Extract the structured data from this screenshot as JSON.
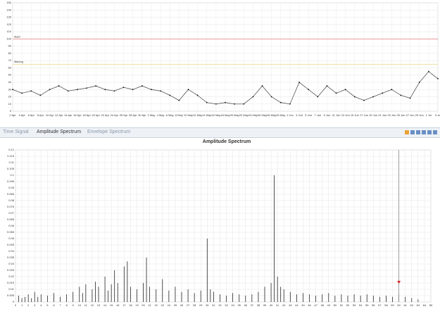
{
  "trend": {
    "type": "line",
    "color": "#555555",
    "categories": [
      "2 Apr",
      "4 Apr",
      "6 Apr",
      "8 Apr",
      "10 Apr",
      "12 Apr",
      "14 Apr",
      "16 Apr",
      "18 Apr",
      "20 Apr",
      "22 Apr",
      "24 Apr",
      "26 Apr",
      "28 Apr",
      "30 Apr",
      "2 May",
      "4 May",
      "6 May",
      "8 May",
      "10 May",
      "12 May",
      "14 May",
      "16 May",
      "18 May",
      "20 May",
      "22 May",
      "24 May",
      "26 May",
      "28 May",
      "30 May",
      "1 Jun",
      "3 Jun",
      "5 Jun",
      "7 Jun",
      "9 Jun",
      "11 Jun",
      "13 Jun",
      "15 Jun",
      "17 Jun",
      "19 Jun",
      "21 Jun",
      "23 Jun",
      "25 Jun",
      "27 Jun",
      "29 Jun",
      "1 Jul",
      "3 Jul"
    ],
    "values": [
      30,
      25,
      28,
      22,
      30,
      35,
      28,
      30,
      32,
      35,
      30,
      28,
      33,
      30,
      35,
      30,
      28,
      22,
      15,
      30,
      22,
      12,
      10,
      12,
      10,
      10,
      20,
      35,
      20,
      12,
      10,
      40,
      30,
      20,
      35,
      25,
      30,
      20,
      15,
      20,
      25,
      30,
      22,
      18,
      40,
      55,
      45
    ],
    "ylim": [
      0,
      150
    ],
    "yticks": [
      0,
      10,
      20,
      30,
      40,
      50,
      60,
      70,
      80,
      90,
      100,
      110,
      120,
      130,
      140,
      150
    ],
    "thresholds": [
      {
        "label": "Alarm",
        "value": 100,
        "color": "#e88a8a"
      },
      {
        "label": "Warning",
        "value": 65,
        "color": "#e8d27a"
      }
    ]
  },
  "tabs": [
    "Time Signal",
    "Amplitude Spectrum",
    "Envelope Spectrum"
  ],
  "spectrum": {
    "type": "stem",
    "title": "Amplitude Spectrum",
    "color": "#222222",
    "x": [
      0.5,
      1,
      1.5,
      2,
      2.5,
      3,
      3.5,
      4,
      5,
      6,
      7,
      8,
      9,
      10,
      10.5,
      11,
      12,
      12.5,
      13,
      14,
      14.5,
      15,
      15.5,
      16,
      17,
      17.5,
      18,
      19,
      20,
      20.5,
      21,
      22,
      23,
      24,
      25,
      26,
      27,
      28,
      29,
      30,
      30.5,
      31,
      32,
      33,
      34,
      35,
      36,
      37,
      38,
      39,
      40,
      40.5,
      41,
      41.5,
      42,
      43,
      44,
      45,
      46,
      47,
      48,
      49,
      50,
      51,
      52,
      53,
      54,
      55,
      56,
      57,
      58,
      59,
      60,
      61,
      62,
      63
    ],
    "values": [
      0.005,
      0.003,
      0.004,
      0.006,
      0.003,
      0.008,
      0.004,
      0.006,
      0.005,
      0.007,
      0.004,
      0.006,
      0.008,
      0.012,
      0.007,
      0.014,
      0.01,
      0.016,
      0.012,
      0.02,
      0.009,
      0.014,
      0.025,
      0.015,
      0.028,
      0.032,
      0.012,
      0.01,
      0.015,
      0.035,
      0.012,
      0.01,
      0.018,
      0.009,
      0.012,
      0.008,
      0.01,
      0.007,
      0.009,
      0.05,
      0.01,
      0.008,
      0.006,
      0.005,
      0.007,
      0.006,
      0.005,
      0.006,
      0.008,
      0.012,
      0.015,
      0.1,
      0.02,
      0.012,
      0.01,
      0.008,
      0.006,
      0.007,
      0.006,
      0.005,
      0.006,
      0.007,
      0.005,
      0.006,
      0.005,
      0.006,
      0.005,
      0.006,
      0.005,
      0.004,
      0.005,
      0.004,
      0.006,
      0.004,
      0.003,
      0.002
    ],
    "cursor_x": 60,
    "cursor_color": "#d62020",
    "xlim": [
      0,
      65
    ],
    "xticks": [
      0,
      1,
      2,
      3,
      4,
      5,
      6,
      7,
      8,
      9,
      10,
      11,
      12,
      13,
      14,
      15,
      16,
      17,
      18,
      19,
      20,
      21,
      22,
      23,
      24,
      25,
      26,
      27,
      28,
      29,
      30,
      31,
      32,
      33,
      34,
      35,
      36,
      37,
      38,
      39,
      40,
      41,
      42,
      43,
      44,
      45,
      46,
      47,
      48,
      49,
      50,
      51,
      52,
      53,
      54,
      55,
      56,
      57,
      58,
      59,
      60,
      61,
      62,
      63,
      64,
      65
    ],
    "ylim": [
      0,
      0.12
    ],
    "yticks": [
      0,
      0.005,
      0.01,
      0.015,
      0.02,
      0.025,
      0.03,
      0.035,
      0.04,
      0.045,
      0.05,
      0.055,
      0.06,
      0.065,
      0.07,
      0.075,
      0.08,
      0.085,
      0.09,
      0.095,
      0.1,
      0.105,
      0.11,
      0.115,
      0.12
    ]
  }
}
